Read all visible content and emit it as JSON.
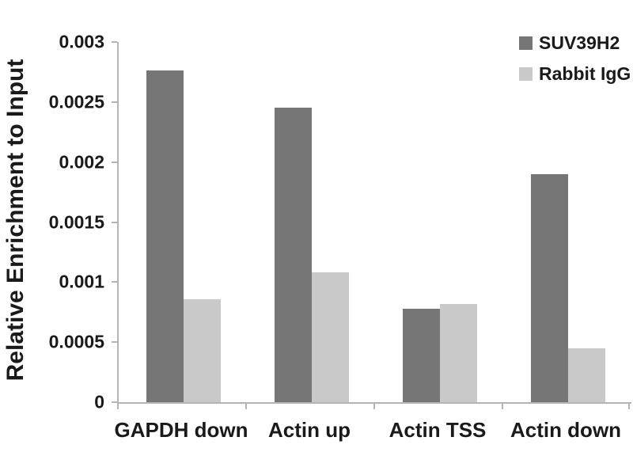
{
  "chart_data": {
    "type": "bar",
    "title": "",
    "xlabel": "",
    "ylabel": "Relative Enrichment to Input",
    "categories": [
      "GAPDH down",
      "Actin up",
      "Actin TSS",
      "Actin down"
    ],
    "series": [
      {
        "name": "SUV39H2",
        "color": "#767676",
        "values": [
          0.00276,
          0.00245,
          0.00078,
          0.0019
        ]
      },
      {
        "name": "Rabbit IgG",
        "color": "#c9c9c9",
        "values": [
          0.00086,
          0.00108,
          0.00082,
          0.00045
        ]
      }
    ],
    "ylim": [
      0,
      0.003
    ],
    "yticks": [
      0,
      0.0005,
      0.001,
      0.0015,
      0.002,
      0.0025,
      0.003
    ],
    "ytick_labels": [
      "0",
      "0.0005",
      "0.001",
      "0.0015",
      "0.002",
      "0.0025",
      "0.003"
    ],
    "grid": false,
    "legend_position": "top-right",
    "colors": {
      "axis": "#b5b5b5",
      "text": "#1a1a1a",
      "background": "#ffffff"
    }
  }
}
